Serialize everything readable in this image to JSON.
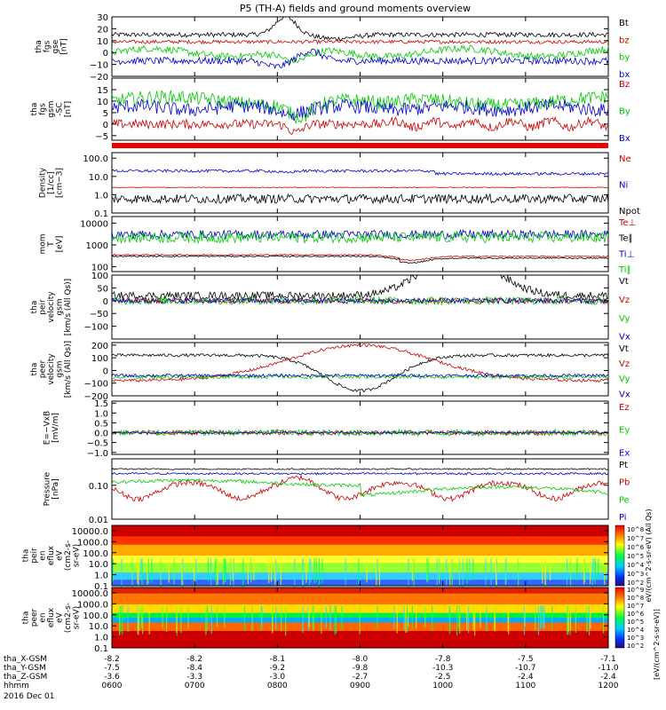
{
  "title": "P5 (TH-A) fields and ground moments overview",
  "chart_data": [
    {
      "type": "line",
      "ylabel": [
        "tha",
        "fgs",
        "gse",
        "[nT]"
      ],
      "yticks": [
        "30",
        "20",
        "10",
        "0",
        "−10",
        "−20"
      ],
      "ylim": [
        -20,
        30
      ],
      "series": [
        {
          "name": "Bt",
          "color": "#000000",
          "level": 15,
          "noise": 2,
          "shape": "bt"
        },
        {
          "name": "bz",
          "color": "#cc0000",
          "level": 9,
          "noise": 1.5,
          "shape": "flat"
        },
        {
          "name": "by",
          "color": "#00cc00",
          "level": 0,
          "noise": 3,
          "shape": "by"
        },
        {
          "name": "bx",
          "color": "#0000cc",
          "level": -7,
          "noise": 3,
          "shape": "bx"
        }
      ]
    },
    {
      "type": "line",
      "ylabel": [
        "tha",
        "fgs",
        "gsm",
        "-SC",
        "[nT]"
      ],
      "yticks": [
        "15",
        "10",
        "5",
        "0",
        "−5"
      ],
      "ylim": [
        -7,
        20
      ],
      "series": [
        {
          "name": "Bz",
          "color": "#cc0000",
          "level": 0,
          "noise": 2,
          "shape": "bz2"
        },
        {
          "name": "By",
          "color": "#00cc00",
          "level": 10,
          "noise": 3,
          "shape": "by2"
        },
        {
          "name": "Bx",
          "color": "#0000cc",
          "level": 7,
          "noise": 3,
          "shape": "bx2"
        }
      ]
    },
    {
      "type": "line",
      "scale": "log",
      "ylabel": [
        "Density",
        "[1/cc]",
        "[cm−3]"
      ],
      "yticks": [
        "100.0",
        "10.0",
        "1.0",
        "0.1"
      ],
      "ylim": [
        0.1,
        200
      ],
      "series": [
        {
          "name": "Ne",
          "color": "#cc0000",
          "level": 2.5,
          "noise": 0.02,
          "shape": "flat"
        },
        {
          "name": "Ni",
          "color": "#0000cc",
          "level": 20,
          "noise": 0.08,
          "shape": "ni"
        },
        {
          "name": "Npot",
          "color": "#000000",
          "level": 0.6,
          "noise": 0.25,
          "shape": "flat"
        }
      ]
    },
    {
      "type": "line",
      "scale": "log",
      "ylabel": [
        "mom",
        "T",
        "[eV]"
      ],
      "yticks": [
        "10000",
        "1000",
        "100"
      ],
      "ylim": [
        60,
        20000
      ],
      "series": [
        {
          "name": "Te⊥",
          "color": "#cc0000",
          "level": 350,
          "noise": 0.03,
          "shape": "te"
        },
        {
          "name": "Te∥",
          "color": "#000000",
          "level": 300,
          "noise": 0.03,
          "shape": "te"
        },
        {
          "name": "Ti⊥",
          "color": "#0000cc",
          "level": 3000,
          "noise": 0.2,
          "shape": "flat"
        },
        {
          "name": "Ti∥",
          "color": "#00cc00",
          "level": 2200,
          "noise": 0.25,
          "shape": "flat"
        }
      ]
    },
    {
      "type": "line",
      "ylabel": [
        "tha",
        "peir",
        "velocity",
        "gsm",
        "[km/s (All Qs)]"
      ],
      "yticks": [
        "100",
        "50",
        "0",
        "−50",
        "−100"
      ],
      "ylim": [
        -150,
        100
      ],
      "series": [
        {
          "name": "Vt",
          "color": "#000000",
          "level": 20,
          "noise": 15,
          "shape": "vt"
        },
        {
          "name": "Vz",
          "color": "#cc0000",
          "level": 0,
          "noise": 12,
          "shape": "flat"
        },
        {
          "name": "Vy",
          "color": "#00cc00",
          "level": 0,
          "noise": 15,
          "shape": "flat"
        },
        {
          "name": "Vx",
          "color": "#0000cc",
          "level": 0,
          "noise": 10,
          "shape": "flat"
        }
      ]
    },
    {
      "type": "line",
      "ylabel": [
        "tha",
        "peer",
        "velocity",
        "gsm",
        "[km/s (All Qs)]"
      ],
      "yticks": [
        "200",
        "100",
        "0",
        "−100",
        "−200"
      ],
      "ylim": [
        -200,
        220
      ],
      "series": [
        {
          "name": "Vt",
          "color": "#000000",
          "level": 120,
          "noise": 12,
          "shape": "vt2"
        },
        {
          "name": "Vz",
          "color": "#cc0000",
          "level": -80,
          "noise": 12,
          "shape": "vz2"
        },
        {
          "name": "Vy",
          "color": "#00cc00",
          "level": -50,
          "noise": 15,
          "shape": "flat"
        },
        {
          "name": "Vx",
          "color": "#0000cc",
          "level": -40,
          "noise": 12,
          "shape": "flat"
        }
      ]
    },
    {
      "type": "line",
      "ylabel": [
        "E=−VxB",
        "[mV/m]"
      ],
      "yticks": [
        "1.5",
        "1.0",
        "0.5",
        "0.0",
        "−0.5",
        "−1.0"
      ],
      "ylim": [
        -1.1,
        1.6
      ],
      "series": [
        {
          "name": "Ez",
          "color": "#cc0000",
          "level": 0,
          "noise": 0.12,
          "shape": "ez"
        },
        {
          "name": "Ey",
          "color": "#00cc00",
          "level": 0,
          "noise": 0.15,
          "shape": "ez"
        },
        {
          "name": "Ex",
          "color": "#0000cc",
          "level": 0,
          "noise": 0.05,
          "shape": "flat"
        }
      ]
    },
    {
      "type": "line",
      "scale": "log",
      "ylabel": [
        "Pressure",
        "[nPa]"
      ],
      "yticks": [
        "0.10",
        "0.01"
      ],
      "ylim": [
        0.01,
        0.6
      ],
      "series": [
        {
          "name": "Pt",
          "color": "#000000",
          "level": 0.3,
          "noise": 0.02,
          "shape": "flat"
        },
        {
          "name": "Pb",
          "color": "#cc0000",
          "level": 0.08,
          "noise": 0.08,
          "shape": "pb"
        },
        {
          "name": "Pe",
          "color": "#00cc00",
          "level": 0.12,
          "noise": 0.05,
          "shape": "pe"
        },
        {
          "name": "Pi",
          "color": "#0000cc",
          "level": 0.22,
          "noise": 0.03,
          "shape": "flat"
        }
      ]
    },
    {
      "type": "heatmap",
      "ylabel": [
        "tha",
        "peir",
        "en",
        "eflux",
        "eV",
        "(cm2-s-",
        "sr-eV)"
      ],
      "yticks": [
        "10000.0",
        "1000.0",
        "100.0",
        "10.0",
        "1.0",
        "0.1"
      ],
      "ylim": [
        0.1,
        30000
      ],
      "variant": "ion"
    },
    {
      "type": "heatmap",
      "ylabel": [
        "tha",
        "peer",
        "en",
        "eflux",
        "eV",
        "(cm2-s-",
        "sr-eV)"
      ],
      "yticks": [
        "10000.0",
        "1000.0",
        "100.0",
        "10.0",
        "1.0",
        "0.1"
      ],
      "ylim": [
        0.1,
        30000
      ],
      "variant": "electron"
    }
  ],
  "colorbar": {
    "top_label": "eV/(cm^2-s-sr-eV) (All Qs)",
    "bottom_label": "[eV/(cm^2-s-sr-eV)]",
    "ticks_top": [
      "10^8",
      "10^7",
      "10^6",
      "10^5",
      "10^4",
      "10^3",
      "10^2"
    ],
    "ticks_bottom": [
      "10^9",
      "10^8",
      "10^7",
      "10^6",
      "10^5",
      "10^4",
      "10^3",
      "10^2"
    ]
  },
  "x_axis": {
    "row_labels": [
      "tha_X-GSM",
      "tha_Y-GSM",
      "tha_Z-GSM",
      "hhmm",
      "2016 Dec 01"
    ],
    "ticks": [
      {
        "x": "-8.2",
        "y": "-7.5",
        "z": "-3.6",
        "t": "0600"
      },
      {
        "x": "-8.2",
        "y": "-8.4",
        "z": "-3.3",
        "t": "0700"
      },
      {
        "x": "-8.1",
        "y": "-9.2",
        "z": "-3.0",
        "t": "0800"
      },
      {
        "x": "-8.0",
        "y": "-9.8",
        "z": "-2.7",
        "t": "0900"
      },
      {
        "x": "-7.8",
        "y": "-10.3",
        "z": "-2.5",
        "t": "1000"
      },
      {
        "x": "-7.5",
        "y": "-10.7",
        "z": "-2.4",
        "t": "1100"
      },
      {
        "x": "-7.1",
        "y": "-11.0",
        "z": "-2.4",
        "t": "1200"
      }
    ]
  }
}
